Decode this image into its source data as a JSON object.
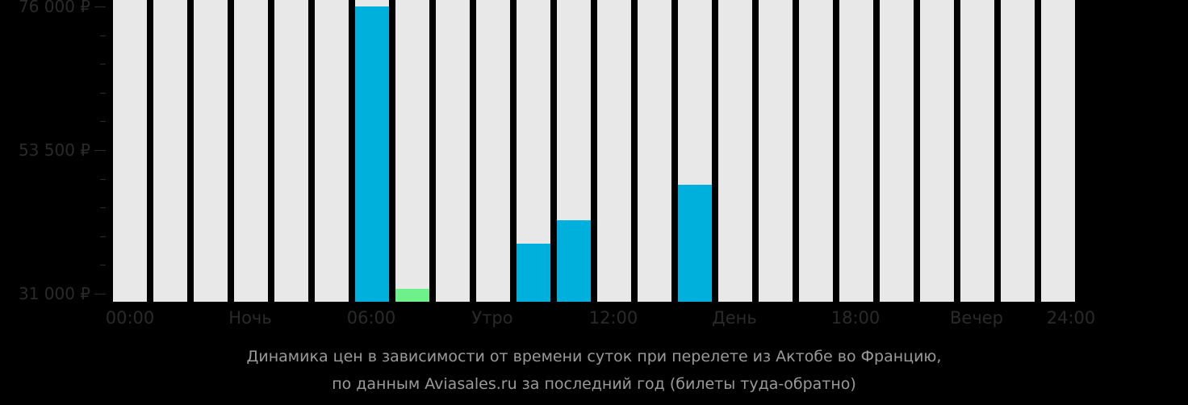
{
  "chart_data": {
    "type": "bar",
    "title": "Динамика цен в зависимости от времени суток при перелете из Актобе во Францию, по данным Aviasales.ru за последний год (билеты туда-обратно)",
    "caption_lines": [
      "Динамика цен в зависимости от времени суток при перелете из Актобе во Францию,",
      "по данным Aviasales.ru за последний год (билеты туда-обратно)"
    ],
    "xlabel": "",
    "ylabel": "",
    "ylim": [
      31000,
      76000
    ],
    "y_ticks": [
      {
        "value": 76000,
        "label": "76 000 ₽"
      },
      {
        "value": 53500,
        "label": "53 500 ₽"
      },
      {
        "value": 31000,
        "label": "31 000 ₽"
      }
    ],
    "x_tick_labels": [
      {
        "pos": 0,
        "label": "00:00"
      },
      {
        "pos": 3,
        "label": "Ночь"
      },
      {
        "pos": 6,
        "label": "06:00"
      },
      {
        "pos": 9,
        "label": "Утро"
      },
      {
        "pos": 12,
        "label": "12:00"
      },
      {
        "pos": 15,
        "label": "День"
      },
      {
        "pos": 18,
        "label": "18:00"
      },
      {
        "pos": 21,
        "label": "Вечер"
      },
      {
        "pos": 24,
        "label": "24:00"
      }
    ],
    "categories": [
      "00",
      "01",
      "02",
      "03",
      "04",
      "05",
      "06",
      "07",
      "08",
      "09",
      "10",
      "11",
      "12",
      "13",
      "14",
      "15",
      "16",
      "17",
      "18",
      "19",
      "20",
      "21",
      "22",
      "23"
    ],
    "values": [
      null,
      null,
      null,
      null,
      null,
      null,
      76000,
      31800,
      null,
      null,
      38800,
      42500,
      null,
      null,
      48100,
      null,
      null,
      null,
      null,
      null,
      null,
      null,
      null,
      null
    ],
    "highlight": {
      "index": 7,
      "label": "cheapest",
      "color": "#6ef08a"
    },
    "colors": {
      "bar": "#00b0dc",
      "cheapest": "#6ef08a",
      "empty_slot": "#e8e8e8",
      "background": "#000000",
      "axis_text": "#2a2a2a",
      "caption_text": "#9a9a9a"
    },
    "grid": false,
    "legend": null
  }
}
